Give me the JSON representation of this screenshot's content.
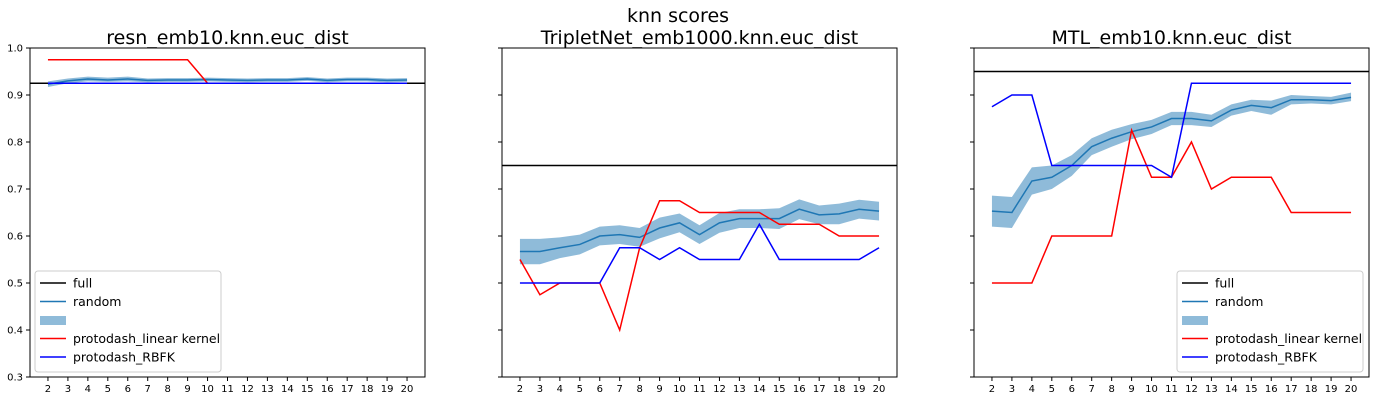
{
  "figure": {
    "suptitle": "knn scores"
  },
  "colors": {
    "full": "#000000",
    "random": "#1f77b4",
    "random_band": "#1f77b4",
    "linear": "#ff0000",
    "rbfk": "#0000ff"
  },
  "chart_data": [
    {
      "type": "line",
      "title": "resn_emb10.knn.euc_dist",
      "xlabel": "",
      "ylabel": "",
      "x": [
        2,
        3,
        4,
        5,
        6,
        7,
        8,
        9,
        10,
        11,
        12,
        13,
        14,
        15,
        16,
        17,
        18,
        19,
        20
      ],
      "x_tick_labels": [
        "2",
        "3",
        "4",
        "5",
        "6",
        "7",
        "8",
        "9",
        "10",
        "11",
        "12",
        "13",
        "14",
        "15",
        "16",
        "17",
        "18",
        "19",
        "20"
      ],
      "ylim": [
        0.3,
        1.0
      ],
      "y_ticks": [
        0.3,
        0.4,
        0.5,
        0.6,
        0.7,
        0.8,
        0.9,
        1.0
      ],
      "y_tick_labels": [
        "0.3",
        "0.4",
        "0.5",
        "0.6",
        "0.7",
        "0.8",
        "0.9",
        "1.0"
      ],
      "show_y_tick_labels": true,
      "full": 0.925,
      "series": [
        {
          "key": "random",
          "name": "random",
          "values": [
            0.923,
            0.93,
            0.934,
            0.932,
            0.934,
            0.931,
            0.932,
            0.932,
            0.933,
            0.932,
            0.931,
            0.932,
            0.932,
            0.934,
            0.931,
            0.933,
            0.933,
            0.931,
            0.932
          ]
        },
        {
          "key": "linear",
          "name": "protodash_linear kernel",
          "values": [
            0.975,
            0.975,
            0.975,
            0.975,
            0.975,
            0.975,
            0.975,
            0.975,
            0.925,
            0.925,
            0.925,
            0.925,
            0.925,
            0.925,
            0.925,
            0.925,
            0.925,
            0.925,
            0.925
          ]
        },
        {
          "key": "rbfk",
          "name": "protodash_RBFK",
          "values": [
            0.925,
            0.925,
            0.925,
            0.925,
            0.925,
            0.925,
            0.925,
            0.925,
            0.925,
            0.925,
            0.925,
            0.925,
            0.925,
            0.925,
            0.925,
            0.925,
            0.925,
            0.925,
            0.925
          ]
        }
      ],
      "band": {
        "lower": [
          0.917,
          0.925,
          0.929,
          0.928,
          0.929,
          0.927,
          0.928,
          0.928,
          0.929,
          0.928,
          0.927,
          0.928,
          0.928,
          0.93,
          0.927,
          0.929,
          0.929,
          0.927,
          0.928
        ],
        "upper": [
          0.929,
          0.935,
          0.939,
          0.937,
          0.939,
          0.935,
          0.936,
          0.936,
          0.937,
          0.936,
          0.935,
          0.936,
          0.936,
          0.938,
          0.935,
          0.937,
          0.937,
          0.935,
          0.936
        ]
      },
      "legend": {
        "placement": "lower-left",
        "entries": [
          "full",
          "random",
          "",
          "protodash_linear kernel",
          "protodash_RBFK"
        ]
      }
    },
    {
      "type": "line",
      "title": "TripletNet_emb1000.knn.euc_dist",
      "xlabel": "",
      "ylabel": "",
      "x": [
        2,
        3,
        4,
        5,
        6,
        7,
        8,
        9,
        10,
        11,
        12,
        13,
        14,
        15,
        16,
        17,
        18,
        19,
        20
      ],
      "x_tick_labels": [
        "2",
        "3",
        "4",
        "5",
        "6",
        "7",
        "8",
        "9",
        "10",
        "11",
        "12",
        "13",
        "14",
        "15",
        "16",
        "17",
        "18",
        "19",
        "20"
      ],
      "ylim": [
        0.3,
        1.0
      ],
      "y_ticks": [
        0.3,
        0.4,
        0.5,
        0.6,
        0.7,
        0.8,
        0.9,
        1.0
      ],
      "y_tick_labels": [],
      "show_y_tick_labels": false,
      "full": 0.75,
      "series": [
        {
          "key": "random",
          "name": "random",
          "values": [
            0.567,
            0.567,
            0.575,
            0.582,
            0.6,
            0.603,
            0.597,
            0.617,
            0.628,
            0.603,
            0.628,
            0.637,
            0.637,
            0.637,
            0.657,
            0.645,
            0.647,
            0.657,
            0.653
          ]
        },
        {
          "key": "linear",
          "name": "protodash_linear kernel",
          "values": [
            0.55,
            0.475,
            0.5,
            0.5,
            0.5,
            0.4,
            0.575,
            0.675,
            0.675,
            0.65,
            0.65,
            0.65,
            0.65,
            0.625,
            0.625,
            0.625,
            0.6,
            0.6,
            0.6
          ]
        },
        {
          "key": "rbfk",
          "name": "protodash_RBFK",
          "values": [
            0.5,
            0.5,
            0.5,
            0.5,
            0.5,
            0.575,
            0.575,
            0.55,
            0.575,
            0.55,
            0.55,
            0.55,
            0.625,
            0.55,
            0.55,
            0.55,
            0.55,
            0.55,
            0.575
          ]
        }
      ],
      "band": {
        "lower": [
          0.54,
          0.54,
          0.553,
          0.561,
          0.58,
          0.583,
          0.577,
          0.595,
          0.608,
          0.583,
          0.607,
          0.617,
          0.617,
          0.615,
          0.636,
          0.625,
          0.625,
          0.637,
          0.633
        ],
        "upper": [
          0.594,
          0.594,
          0.597,
          0.603,
          0.62,
          0.623,
          0.617,
          0.639,
          0.648,
          0.623,
          0.649,
          0.657,
          0.657,
          0.659,
          0.678,
          0.665,
          0.669,
          0.677,
          0.673
        ]
      },
      "legend": null
    },
    {
      "type": "line",
      "title": "MTL_emb10.knn.euc_dist",
      "xlabel": "",
      "ylabel": "",
      "x": [
        2,
        3,
        4,
        5,
        6,
        7,
        8,
        9,
        10,
        11,
        12,
        13,
        14,
        15,
        16,
        17,
        18,
        19,
        20
      ],
      "x_tick_labels": [
        "2",
        "3",
        "4",
        "5",
        "6",
        "7",
        "8",
        "9",
        "10",
        "11",
        "12",
        "13",
        "14",
        "15",
        "16",
        "17",
        "18",
        "19",
        "20"
      ],
      "ylim": [
        0.3,
        1.0
      ],
      "y_ticks": [
        0.3,
        0.4,
        0.5,
        0.6,
        0.7,
        0.8,
        0.9,
        1.0
      ],
      "y_tick_labels": [],
      "show_y_tick_labels": false,
      "full": 0.95,
      "series": [
        {
          "key": "random",
          "name": "random",
          "values": [
            0.653,
            0.65,
            0.717,
            0.725,
            0.75,
            0.79,
            0.808,
            0.822,
            0.832,
            0.85,
            0.85,
            0.845,
            0.868,
            0.878,
            0.873,
            0.89,
            0.89,
            0.888,
            0.895
          ]
        },
        {
          "key": "linear",
          "name": "protodash_linear kernel",
          "values": [
            0.5,
            0.5,
            0.5,
            0.6,
            0.6,
            0.6,
            0.6,
            0.825,
            0.725,
            0.725,
            0.8,
            0.7,
            0.725,
            0.725,
            0.725,
            0.65,
            0.65,
            0.65,
            0.65
          ]
        },
        {
          "key": "rbfk",
          "name": "protodash_RBFK",
          "values": [
            0.875,
            0.9,
            0.9,
            0.75,
            0.75,
            0.75,
            0.75,
            0.75,
            0.75,
            0.725,
            0.925,
            0.925,
            0.925,
            0.925,
            0.925,
            0.925,
            0.925,
            0.925,
            0.925
          ]
        }
      ],
      "band": {
        "lower": [
          0.62,
          0.617,
          0.688,
          0.7,
          0.728,
          0.772,
          0.79,
          0.806,
          0.817,
          0.836,
          0.836,
          0.832,
          0.856,
          0.866,
          0.858,
          0.88,
          0.882,
          0.88,
          0.887
        ],
        "upper": [
          0.686,
          0.683,
          0.746,
          0.75,
          0.772,
          0.808,
          0.826,
          0.838,
          0.847,
          0.864,
          0.864,
          0.858,
          0.88,
          0.89,
          0.888,
          0.9,
          0.898,
          0.896,
          0.905
        ]
      },
      "legend": {
        "placement": "lower-right",
        "entries": [
          "full",
          "random",
          "",
          "protodash_linear kernel",
          "protodash_RBFK"
        ]
      }
    }
  ]
}
